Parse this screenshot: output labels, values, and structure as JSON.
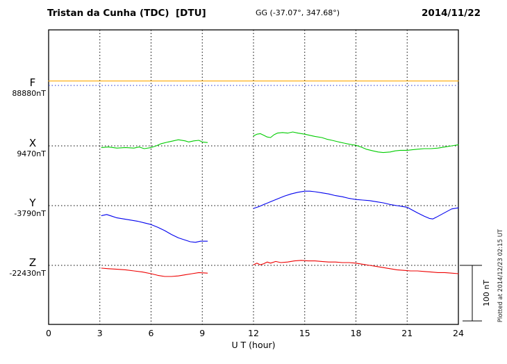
{
  "header": {
    "title": "Tristan da Cunha (TDC)  [DTU]",
    "gg": "GG (-37.07°, 347.68°)",
    "date": "2014/11/22"
  },
  "plotted_at": "Plotted at 2014/12/23 02:15 UT",
  "scale_bar": {
    "label": "100 nT",
    "nT": 100
  },
  "chart_data": {
    "type": "line",
    "title": "Tristan da Cunha (TDC) [DTU] magnetogram, 2014/11/22",
    "xlabel": "U T (hour)",
    "x_range": [
      0,
      24
    ],
    "x_ticks": [
      0,
      3,
      6,
      9,
      12,
      15,
      18,
      21,
      24
    ],
    "grid": "dotted vertical gridlines every 3 h; dotted horizontal baseline per component",
    "scale_nT": 100,
    "units": "nT relative to component baseline",
    "data_gap_hours": [
      9.3,
      12.0
    ],
    "series": [
      {
        "name": "F",
        "color": "#ffaa00",
        "baseline_color": "#2233cc",
        "value_label": "88880nT",
        "baseline_nT": 88880,
        "segments": [
          [
            [
              0,
              8
            ],
            [
              24,
              8
            ]
          ]
        ]
      },
      {
        "name": "X",
        "color": "#00cc00",
        "baseline_color": "#000000",
        "value_label": "9470nT",
        "baseline_nT": 9470,
        "segments": [
          [
            [
              3.1,
              -3
            ],
            [
              3.5,
              -2
            ],
            [
              4,
              -4
            ],
            [
              4.5,
              -3
            ],
            [
              5,
              -4
            ],
            [
              5.3,
              -2
            ],
            [
              5.6,
              -5
            ],
            [
              6,
              -3
            ],
            [
              6.3,
              0
            ],
            [
              6.6,
              4
            ],
            [
              7,
              7
            ],
            [
              7.3,
              9
            ],
            [
              7.6,
              11
            ],
            [
              8,
              9
            ],
            [
              8.2,
              7
            ],
            [
              8.5,
              9
            ],
            [
              8.8,
              10
            ],
            [
              9,
              7
            ],
            [
              9.3,
              6
            ]
          ],
          [
            [
              12,
              18
            ],
            [
              12.2,
              21
            ],
            [
              12.4,
              22
            ],
            [
              12.6,
              19
            ],
            [
              12.8,
              16
            ],
            [
              13,
              15
            ],
            [
              13.2,
              20
            ],
            [
              13.4,
              23
            ],
            [
              13.7,
              24
            ],
            [
              14,
              23
            ],
            [
              14.3,
              25
            ],
            [
              14.6,
              23
            ],
            [
              15,
              21
            ],
            [
              15.3,
              19
            ],
            [
              15.6,
              17
            ],
            [
              16,
              15
            ],
            [
              16.3,
              12
            ],
            [
              16.6,
              10
            ],
            [
              17,
              7
            ],
            [
              17.3,
              5
            ],
            [
              17.6,
              3
            ],
            [
              18,
              1
            ],
            [
              18.3,
              -2
            ],
            [
              18.6,
              -6
            ],
            [
              19,
              -9
            ],
            [
              19.3,
              -11
            ],
            [
              19.6,
              -12
            ],
            [
              20,
              -11
            ],
            [
              20.3,
              -9
            ],
            [
              20.6,
              -8
            ],
            [
              21,
              -8
            ],
            [
              21.3,
              -7
            ],
            [
              21.6,
              -6
            ],
            [
              22,
              -5
            ],
            [
              22.4,
              -5
            ],
            [
              22.8,
              -4
            ],
            [
              23.2,
              -2
            ],
            [
              23.6,
              0
            ],
            [
              24,
              2
            ]
          ]
        ]
      },
      {
        "name": "Y",
        "color": "#0000ee",
        "baseline_color": "#000000",
        "value_label": "-3790nT",
        "baseline_nT": -3790,
        "segments": [
          [
            [
              3.1,
              -18
            ],
            [
              3.4,
              -16
            ],
            [
              3.7,
              -19
            ],
            [
              4,
              -22
            ],
            [
              4.4,
              -24
            ],
            [
              4.8,
              -26
            ],
            [
              5.2,
              -28
            ],
            [
              5.6,
              -31
            ],
            [
              6,
              -34
            ],
            [
              6.4,
              -39
            ],
            [
              6.8,
              -45
            ],
            [
              7.2,
              -52
            ],
            [
              7.6,
              -58
            ],
            [
              8,
              -62
            ],
            [
              8.3,
              -65
            ],
            [
              8.6,
              -66
            ],
            [
              8.9,
              -64
            ],
            [
              9.3,
              -64
            ]
          ],
          [
            [
              12,
              -5
            ],
            [
              12.3,
              -2
            ],
            [
              12.6,
              2
            ],
            [
              13,
              7
            ],
            [
              13.4,
              12
            ],
            [
              13.8,
              17
            ],
            [
              14.2,
              21
            ],
            [
              14.6,
              24
            ],
            [
              15,
              26
            ],
            [
              15.3,
              26
            ],
            [
              15.6,
              25
            ],
            [
              16,
              23
            ],
            [
              16.4,
              21
            ],
            [
              16.8,
              18
            ],
            [
              17.2,
              16
            ],
            [
              17.6,
              13
            ],
            [
              18,
              11
            ],
            [
              18.4,
              10
            ],
            [
              18.8,
              9
            ],
            [
              19.2,
              7
            ],
            [
              19.6,
              5
            ],
            [
              20,
              2
            ],
            [
              20.4,
              0
            ],
            [
              20.8,
              -2
            ],
            [
              21,
              -3
            ],
            [
              21.3,
              -8
            ],
            [
              21.6,
              -13
            ],
            [
              22,
              -19
            ],
            [
              22.3,
              -23
            ],
            [
              22.5,
              -24
            ],
            [
              22.7,
              -21
            ],
            [
              23,
              -16
            ],
            [
              23.3,
              -11
            ],
            [
              23.6,
              -6
            ],
            [
              24,
              -4
            ]
          ]
        ]
      },
      {
        "name": "Z",
        "color": "#ee0000",
        "baseline_color": "#000000",
        "value_label": "-22430nT",
        "baseline_nT": -22430,
        "segments": [
          [
            [
              3.1,
              -5
            ],
            [
              3.5,
              -6
            ],
            [
              4,
              -7
            ],
            [
              4.5,
              -8
            ],
            [
              5,
              -10
            ],
            [
              5.5,
              -12
            ],
            [
              6,
              -15
            ],
            [
              6.4,
              -18
            ],
            [
              6.8,
              -20
            ],
            [
              7.2,
              -20
            ],
            [
              7.6,
              -19
            ],
            [
              8,
              -17
            ],
            [
              8.4,
              -15
            ],
            [
              8.8,
              -13
            ],
            [
              9.3,
              -14
            ]
          ],
          [
            [
              12,
              1
            ],
            [
              12.2,
              4
            ],
            [
              12.4,
              1
            ],
            [
              12.6,
              3
            ],
            [
              12.8,
              6
            ],
            [
              13,
              4
            ],
            [
              13.3,
              7
            ],
            [
              13.6,
              5
            ],
            [
              14,
              6
            ],
            [
              14.4,
              8
            ],
            [
              14.8,
              9
            ],
            [
              15.2,
              8
            ],
            [
              15.6,
              8
            ],
            [
              16,
              7
            ],
            [
              16.4,
              6
            ],
            [
              16.8,
              6
            ],
            [
              17.2,
              5
            ],
            [
              17.6,
              5
            ],
            [
              18,
              4
            ],
            [
              18.4,
              2
            ],
            [
              18.8,
              0
            ],
            [
              19.2,
              -2
            ],
            [
              19.6,
              -4
            ],
            [
              20,
              -6
            ],
            [
              20.4,
              -8
            ],
            [
              20.8,
              -9
            ],
            [
              21.2,
              -10
            ],
            [
              21.6,
              -10
            ],
            [
              22,
              -11
            ],
            [
              22.4,
              -12
            ],
            [
              22.8,
              -13
            ],
            [
              23.2,
              -13
            ],
            [
              23.6,
              -14
            ],
            [
              24,
              -15
            ]
          ]
        ]
      }
    ]
  }
}
